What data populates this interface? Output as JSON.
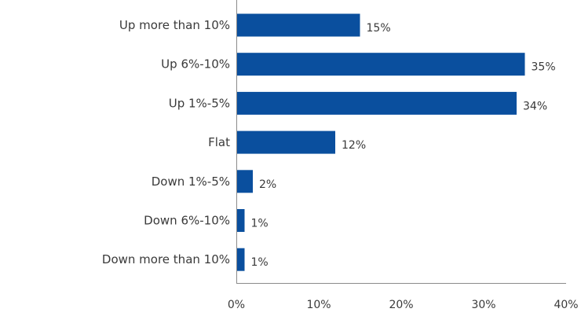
{
  "chart_data": {
    "type": "bar",
    "orientation": "horizontal",
    "categories": [
      "Up more than 10%",
      "Up 6%-10%",
      "Up 1%-5%",
      "Flat",
      "Down 1%-5%",
      "Down 6%-10%",
      "Down more than 10%"
    ],
    "values": [
      15,
      35,
      34,
      12,
      2,
      1,
      1
    ],
    "value_labels": [
      "15%",
      "35%",
      "34%",
      "12%",
      "2%",
      "1%",
      "1%"
    ],
    "xlim": [
      0,
      40
    ],
    "x_ticks": [
      0,
      10,
      20,
      30,
      40
    ],
    "x_tick_labels": [
      "0%",
      "10%",
      "20%",
      "30%",
      "40%"
    ],
    "grid": false,
    "bar_color": "#0a4f9e"
  }
}
